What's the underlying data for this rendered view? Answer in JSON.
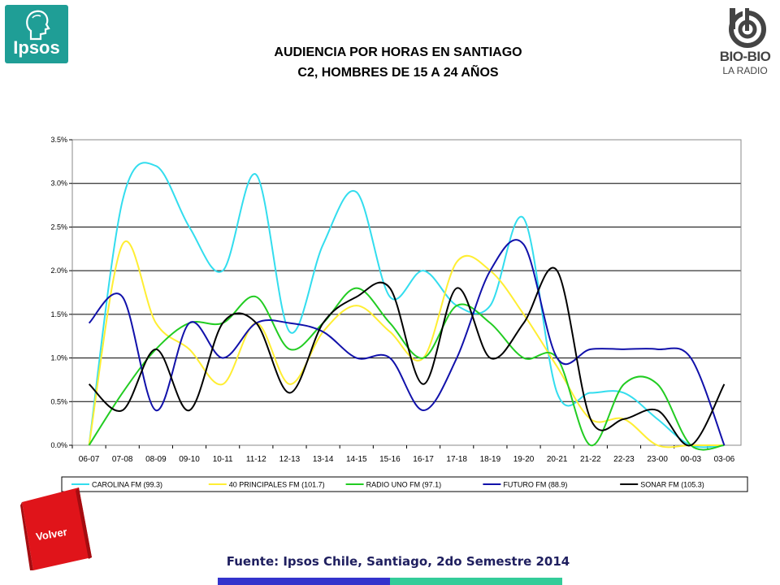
{
  "header": {
    "title_line1": "AUDIENCIA POR HORAS EN SANTIAGO",
    "title_line2": "C2, HOMBRES DE 15 A 24 AÑOS",
    "logo_left_text": "Ipsos",
    "logo_right_text": "BIO-BIO",
    "logo_right_subtext": "LA RADIO"
  },
  "footer": {
    "source": "Fuente: Ipsos Chile, Santiago, 2do Semestre 2014",
    "back_button": "Volver"
  },
  "colors": {
    "ipsos_brand": "#1f9e96",
    "volver_red": "#e0141a",
    "bar_blue": "#3333cc",
    "bar_teal": "#33cc99"
  },
  "chart_data": {
    "type": "line",
    "categories": [
      "06-07",
      "07-08",
      "08-09",
      "09-10",
      "10-11",
      "11-12",
      "12-13",
      "13-14",
      "14-15",
      "15-16",
      "16-17",
      "17-18",
      "18-19",
      "19-20",
      "20-21",
      "21-22",
      "22-23",
      "23-00",
      "00-03",
      "03-06"
    ],
    "yticks": [
      "0.0%",
      "0.5%",
      "1.0%",
      "1.5%",
      "2.0%",
      "2.5%",
      "3.0%",
      "3.5%"
    ],
    "ylim": [
      0,
      3.5
    ],
    "grid": true,
    "legend_position": "bottom",
    "series": [
      {
        "name": "CAROLINA FM (99.3)",
        "color": "#33ddee",
        "values": [
          0.0,
          2.8,
          3.2,
          2.5,
          2.0,
          3.1,
          1.3,
          2.3,
          2.9,
          1.7,
          2.0,
          1.6,
          1.6,
          2.6,
          0.6,
          0.6,
          0.6,
          0.3,
          0.0,
          0.0
        ]
      },
      {
        "name": "40 PRINCIPALES FM (101.7)",
        "color": "#ffee33",
        "values": [
          0.0,
          2.3,
          1.4,
          1.1,
          0.7,
          1.4,
          0.7,
          1.3,
          1.6,
          1.3,
          1.0,
          2.1,
          2.0,
          1.5,
          0.9,
          0.3,
          0.3,
          0.0,
          0.0,
          0.0
        ]
      },
      {
        "name": "RADIO UNO FM (97.1)",
        "color": "#22cc22",
        "values": [
          0.0,
          0.6,
          1.1,
          1.4,
          1.4,
          1.7,
          1.1,
          1.4,
          1.8,
          1.4,
          1.0,
          1.6,
          1.4,
          1.0,
          1.0,
          0.0,
          0.7,
          0.7,
          0.0,
          0.0
        ]
      },
      {
        "name": "FUTURO FM (88.9)",
        "color": "#1111aa",
        "values": [
          1.4,
          1.7,
          0.4,
          1.4,
          1.0,
          1.4,
          1.4,
          1.3,
          1.0,
          1.0,
          0.4,
          1.0,
          2.0,
          2.3,
          1.0,
          1.1,
          1.1,
          1.1,
          1.0,
          0.0
        ]
      },
      {
        "name": "SONAR FM (105.3)",
        "color": "#000000",
        "values": [
          0.7,
          0.4,
          1.1,
          0.4,
          1.4,
          1.4,
          0.6,
          1.4,
          1.7,
          1.8,
          0.7,
          1.8,
          1.0,
          1.4,
          2.0,
          0.3,
          0.3,
          0.4,
          0.0,
          0.7
        ]
      }
    ]
  }
}
